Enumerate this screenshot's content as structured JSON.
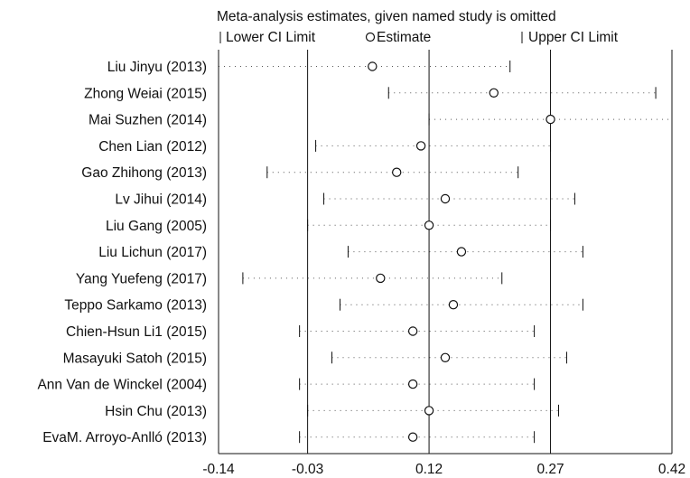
{
  "chart_data": {
    "type": "forest",
    "title": "Meta-analysis estimates, given named study is omitted",
    "legend": {
      "lower": "Lower CI Limit",
      "estimate": "Estimate",
      "upper": "Upper CI Limit"
    },
    "x_ticks": [
      "-0.14",
      "-0.03",
      "0.12",
      "0.27",
      "0.42"
    ],
    "xlim": [
      -0.14,
      0.42
    ],
    "reference_lines": [
      -0.03,
      0.12,
      0.27
    ],
    "studies": [
      {
        "name": "Liu Jinyu (2013)",
        "lower": -0.14,
        "estimate": 0.05,
        "upper": 0.22
      },
      {
        "name": "Zhong Weiai (2015)",
        "lower": 0.07,
        "estimate": 0.2,
        "upper": 0.4
      },
      {
        "name": "Mai Suzhen (2014)",
        "lower": 0.12,
        "estimate": 0.27,
        "upper": 0.42
      },
      {
        "name": "Chen Lian (2012)",
        "lower": -0.02,
        "estimate": 0.11,
        "upper": 0.27
      },
      {
        "name": "Gao Zhihong (2013)",
        "lower": -0.08,
        "estimate": 0.08,
        "upper": 0.23
      },
      {
        "name": "Lv Jihui (2014)",
        "lower": -0.01,
        "estimate": 0.14,
        "upper": 0.3
      },
      {
        "name": "Liu Gang (2005)",
        "lower": -0.03,
        "estimate": 0.12,
        "upper": 0.27
      },
      {
        "name": "Liu Lichun (2017)",
        "lower": 0.02,
        "estimate": 0.16,
        "upper": 0.31
      },
      {
        "name": "Yang Yuefeng (2017)",
        "lower": -0.11,
        "estimate": 0.06,
        "upper": 0.21
      },
      {
        "name": "Teppo Sarkamo (2013)",
        "lower": 0.01,
        "estimate": 0.15,
        "upper": 0.31
      },
      {
        "name": "Chien-Hsun Li1 (2015)",
        "lower": -0.04,
        "estimate": 0.1,
        "upper": 0.25
      },
      {
        "name": "Masayuki Satoh  (2015)",
        "lower": 0.0,
        "estimate": 0.14,
        "upper": 0.29
      },
      {
        "name": "Ann Van de Winckel (2004)",
        "lower": -0.04,
        "estimate": 0.1,
        "upper": 0.25
      },
      {
        "name": "Hsin Chu (2013)",
        "lower": -0.03,
        "estimate": 0.12,
        "upper": 0.28
      },
      {
        "name": "EvaM. Arroyo-Anlló (2013)",
        "lower": -0.04,
        "estimate": 0.1,
        "upper": 0.25
      }
    ]
  }
}
